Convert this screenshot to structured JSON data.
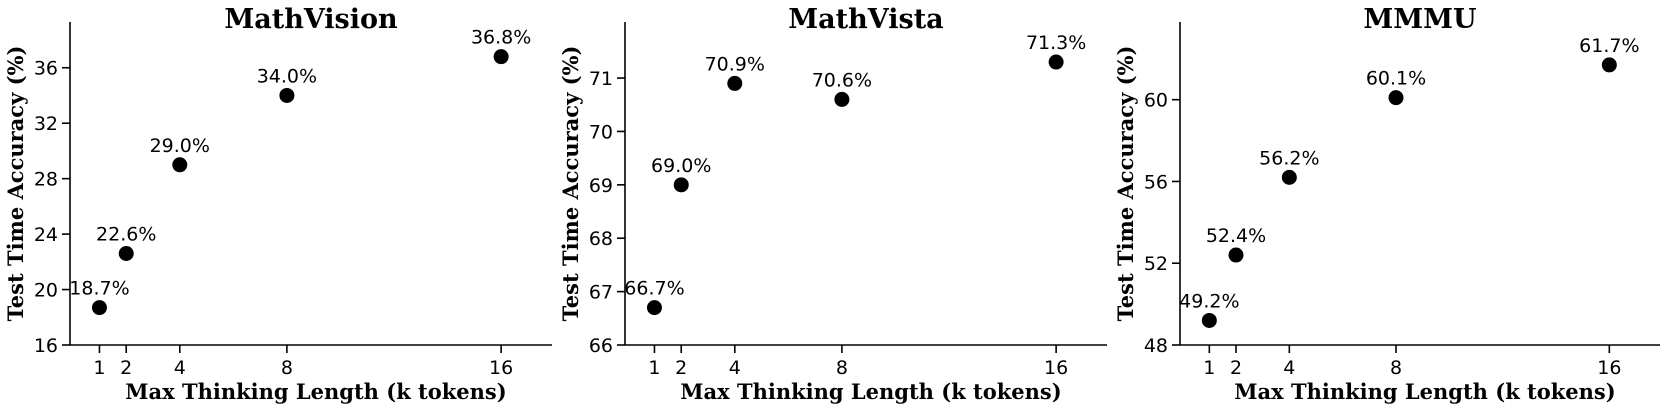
{
  "chart_data": [
    {
      "type": "scatter",
      "title": "MathVision",
      "xlabel": "Max Thinking Length (k tokens)",
      "ylabel": "Test Time Accuracy (%)",
      "x": [
        1,
        2,
        4,
        8,
        16
      ],
      "y": [
        18.7,
        22.6,
        29.0,
        34.0,
        36.8
      ],
      "data_labels": [
        "18.7%",
        "22.6%",
        "29.0%",
        "34.0%",
        "36.8%"
      ],
      "xticks": [
        1,
        2,
        4,
        8,
        16
      ],
      "yticks": [
        16,
        20,
        24,
        28,
        32,
        36
      ],
      "xlim": [
        -0.1,
        17.9
      ],
      "ylim": [
        16,
        39.3
      ],
      "marker_color": "#000000",
      "grid": false
    },
    {
      "type": "scatter",
      "title": "MathVista",
      "xlabel": "Max Thinking Length (k tokens)",
      "ylabel": "Test Time Accuracy (%)",
      "x": [
        1,
        2,
        4,
        8,
        16
      ],
      "y": [
        66.7,
        69.0,
        70.9,
        70.6,
        71.3
      ],
      "data_labels": [
        "66.7%",
        "69.0%",
        "70.9%",
        "70.6%",
        "71.3%"
      ],
      "xticks": [
        1,
        2,
        4,
        8,
        16
      ],
      "yticks": [
        66,
        67,
        68,
        69,
        70,
        71
      ],
      "xlim": [
        -0.1,
        17.9
      ],
      "ylim": [
        66,
        72.05
      ],
      "marker_color": "#000000",
      "grid": false
    },
    {
      "type": "scatter",
      "title": "MMMU",
      "xlabel": "Max Thinking Length (k tokens)",
      "ylabel": "Test Time Accuracy (%)",
      "x": [
        1,
        2,
        4,
        8,
        16
      ],
      "y": [
        49.2,
        52.4,
        56.2,
        60.1,
        61.7
      ],
      "data_labels": [
        "49.2%",
        "52.4%",
        "56.2%",
        "60.1%",
        "61.7%"
      ],
      "xticks": [
        1,
        2,
        4,
        8,
        16
      ],
      "yticks": [
        48,
        52,
        56,
        60
      ],
      "xlim": [
        -0.1,
        17.9
      ],
      "ylim": [
        48,
        63.8
      ],
      "marker_color": "#000000",
      "grid": false
    }
  ]
}
